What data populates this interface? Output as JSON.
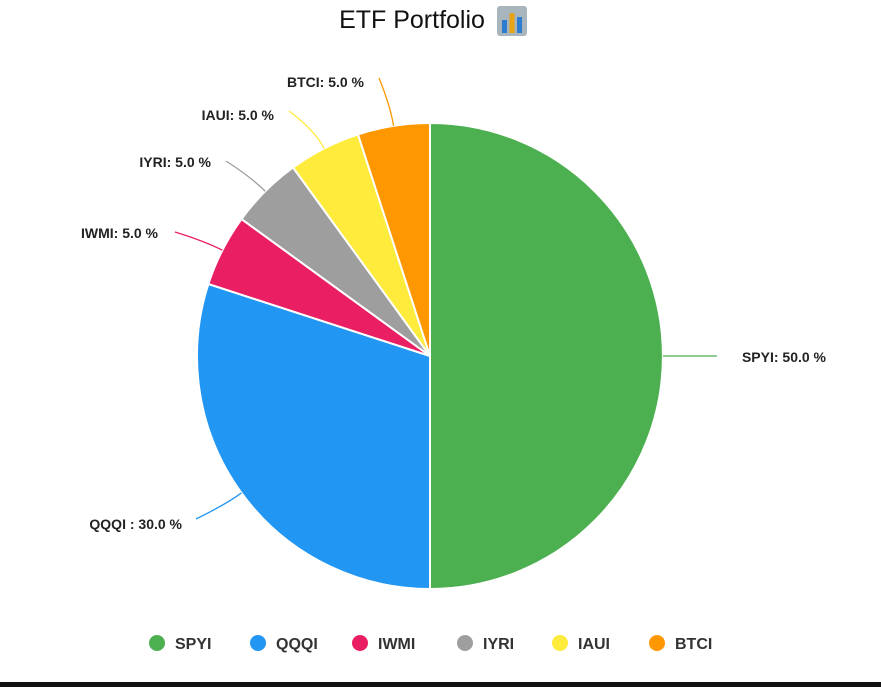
{
  "chart_data": {
    "type": "pie",
    "title": "ETF Portfolio",
    "title_icon": "bar-chart-emoji-icon",
    "slices": [
      {
        "name": "SPYI",
        "value": 50.0,
        "label": "SPYI: 50.0 %",
        "color": "#4CAF50"
      },
      {
        "name": "QQQI",
        "value": 30.0,
        "label": "QQQI : 30.0 %",
        "color": "#2196F3"
      },
      {
        "name": "IWMI",
        "value": 5.0,
        "label": "IWMI: 5.0 %",
        "color": "#E91E63"
      },
      {
        "name": "IYRI",
        "value": 5.0,
        "label": "IYRI: 5.0 %",
        "color": "#9E9E9E"
      },
      {
        "name": "IAUI",
        "value": 5.0,
        "label": "IAUI: 5.0 %",
        "color": "#FFEB3B"
      },
      {
        "name": "BTCI",
        "value": 5.0,
        "label": "BTCI: 5.0 %",
        "color": "#FF9800"
      }
    ],
    "start_angle_deg": 0,
    "direction": "clockwise",
    "legend": {
      "position": "bottom",
      "items": [
        "SPYI",
        "QQQI",
        "IWMI",
        "IYRI",
        "IAUI",
        "BTCI"
      ]
    }
  }
}
